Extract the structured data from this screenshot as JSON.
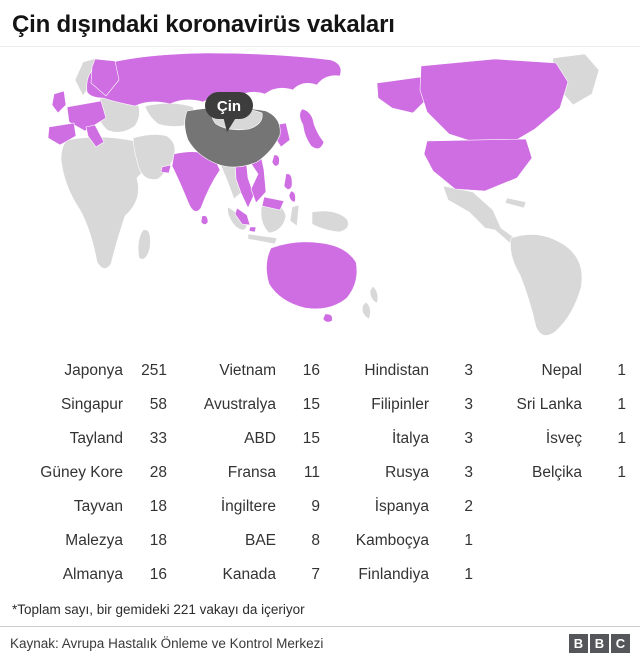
{
  "title": "Çin dışındaki koronavirüs vakaları",
  "map": {
    "china_label": "Çin",
    "colors": {
      "affected": "#cf6ee3",
      "land": "#d8d8d8",
      "china_fill": "#757575",
      "china_label_bg": "#3d3d3d",
      "china_label_text": "#ffffff",
      "logo": "#55565a"
    }
  },
  "chart_data": {
    "type": "table",
    "title": "Çin dışındaki koronavirüs vakaları",
    "columns": [
      [
        {
          "country": "Japonya",
          "cases": 251
        },
        {
          "country": "Singapur",
          "cases": 58
        },
        {
          "country": "Tayland",
          "cases": 33
        },
        {
          "country": "Güney Kore",
          "cases": 28
        },
        {
          "country": "Tayvan",
          "cases": 18
        },
        {
          "country": "Malezya",
          "cases": 18
        },
        {
          "country": "Almanya",
          "cases": 16
        }
      ],
      [
        {
          "country": "Vietnam",
          "cases": 16
        },
        {
          "country": "Avustralya",
          "cases": 15
        },
        {
          "country": "ABD",
          "cases": 15
        },
        {
          "country": "Fransa",
          "cases": 11
        },
        {
          "country": "İngiltere",
          "cases": 9
        },
        {
          "country": "BAE",
          "cases": 8
        },
        {
          "country": "Kanada",
          "cases": 7
        }
      ],
      [
        {
          "country": "Hindistan",
          "cases": 3
        },
        {
          "country": "Filipinler",
          "cases": 3
        },
        {
          "country": "İtalya",
          "cases": 3
        },
        {
          "country": "Rusya",
          "cases": 3
        },
        {
          "country": "İspanya",
          "cases": 2
        },
        {
          "country": "Kamboçya",
          "cases": 1
        },
        {
          "country": "Finlandiya",
          "cases": 1
        }
      ],
      [
        {
          "country": "Nepal",
          "cases": 1
        },
        {
          "country": "Sri Lanka",
          "cases": 1
        },
        {
          "country": "İsveç",
          "cases": 1
        },
        {
          "country": "Belçika",
          "cases": 1
        }
      ]
    ]
  },
  "footnote": "*Toplam sayı, bir gemideki 221 vakayı da içeriyor",
  "source": "Kaynak: Avrupa Hastalık Önleme ve Kontrol Merkezi",
  "bbc_logo": [
    "B",
    "B",
    "C"
  ]
}
